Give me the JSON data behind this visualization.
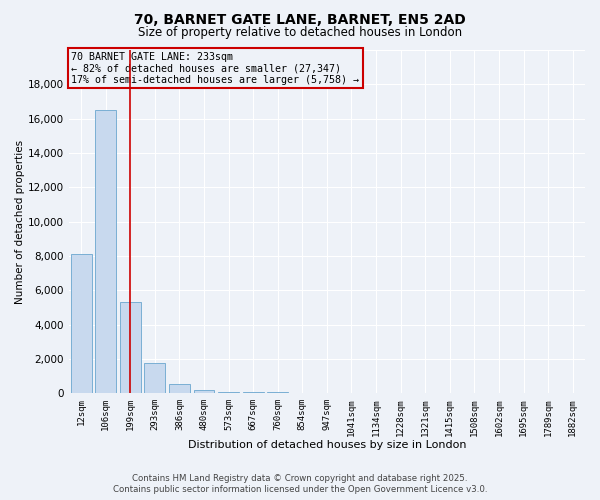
{
  "title_line1": "70, BARNET GATE LANE, BARNET, EN5 2AD",
  "title_line2": "Size of property relative to detached houses in London",
  "xlabel": "Distribution of detached houses by size in London",
  "ylabel": "Number of detached properties",
  "categories": [
    "12sqm",
    "106sqm",
    "199sqm",
    "293sqm",
    "386sqm",
    "480sqm",
    "573sqm",
    "667sqm",
    "760sqm",
    "854sqm",
    "947sqm",
    "1041sqm",
    "1134sqm",
    "1228sqm",
    "1321sqm",
    "1415sqm",
    "1508sqm",
    "1602sqm",
    "1695sqm",
    "1789sqm",
    "1882sqm"
  ],
  "values": [
    8100,
    16500,
    5300,
    1750,
    550,
    200,
    100,
    80,
    80,
    0,
    0,
    0,
    0,
    0,
    0,
    0,
    0,
    0,
    0,
    0,
    0
  ],
  "bar_color": "#c8d9ee",
  "bar_edge_color": "#7aafd4",
  "property_line_x": 2.0,
  "property_line_color": "#cc0000",
  "annotation_text": "70 BARNET GATE LANE: 233sqm\n← 82% of detached houses are smaller (27,347)\n17% of semi-detached houses are larger (5,758) →",
  "annotation_box_color": "#cc0000",
  "ylim": [
    0,
    20000
  ],
  "yticks": [
    0,
    2000,
    4000,
    6000,
    8000,
    10000,
    12000,
    14000,
    16000,
    18000,
    20000
  ],
  "bg_color": "#eef2f8",
  "grid_color": "#ffffff",
  "footer_line1": "Contains HM Land Registry data © Crown copyright and database right 2025.",
  "footer_line2": "Contains public sector information licensed under the Open Government Licence v3.0."
}
